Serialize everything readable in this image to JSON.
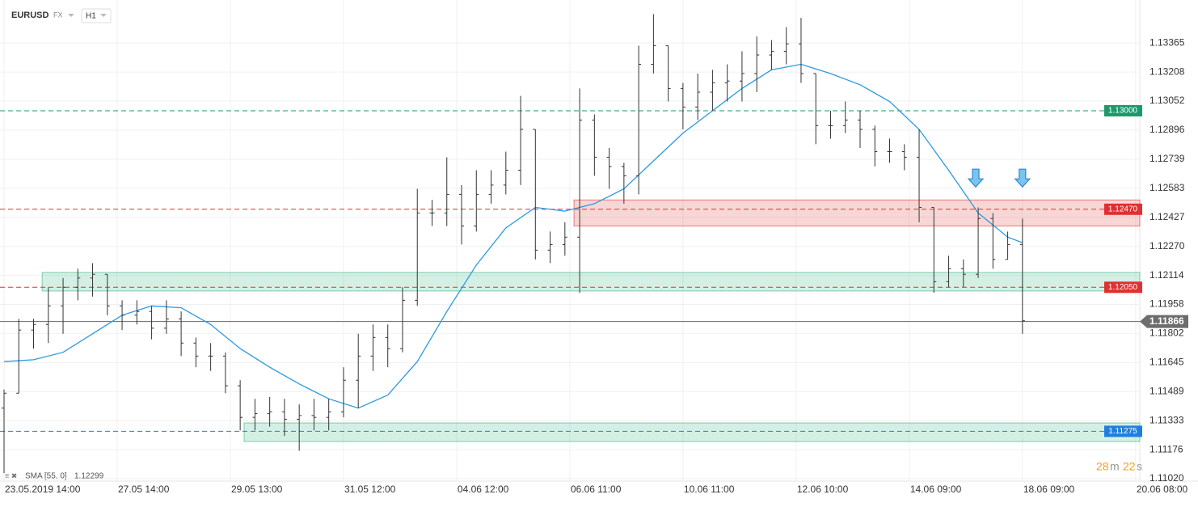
{
  "chart_data": {
    "type": "ohlc",
    "symbol": "EURUSD",
    "market": "FX",
    "interval": "H1",
    "x": [
      0,
      6,
      12,
      18,
      24,
      30,
      36,
      42,
      48,
      54,
      60,
      66,
      72,
      78,
      84,
      90,
      96,
      102,
      108,
      114,
      120,
      126,
      132,
      138,
      144,
      150,
      156,
      162,
      168,
      174,
      180,
      186,
      192,
      198,
      204,
      210,
      216,
      222,
      228,
      234,
      240,
      246,
      252,
      258,
      264,
      270,
      276,
      282,
      288,
      294,
      300,
      306,
      312,
      318,
      324,
      330,
      336,
      342,
      348,
      354,
      360,
      366,
      372,
      378,
      384,
      390,
      396,
      402,
      408,
      414
    ],
    "open": [
      1.114,
      1.1148,
      1.1182,
      1.1185,
      1.1195,
      1.1205,
      1.121,
      1.1212,
      1.1195,
      1.119,
      1.1192,
      1.1183,
      1.1188,
      1.1175,
      1.1168,
      1.1168,
      1.1152,
      1.1135,
      1.1137,
      1.1138,
      1.1134,
      1.1136,
      1.1135,
      1.1138,
      1.1155,
      1.1168,
      1.1178,
      1.1172,
      1.1198,
      1.1245,
      1.1245,
      1.1255,
      1.1238,
      1.1255,
      1.126,
      1.1268,
      1.129,
      1.1225,
      1.1228,
      1.1232,
      1.1295,
      1.1275,
      1.127,
      1.1265,
      1.1325,
      1.1335,
      1.1312,
      1.1302,
      1.131,
      1.1315,
      1.1316,
      1.132,
      1.133,
      1.1332,
      1.1336,
      1.132,
      1.1292,
      1.1292,
      1.1295,
      1.129,
      1.1278,
      1.1278,
      1.1275,
      1.1248,
      1.1208,
      1.1215,
      1.1212,
      1.1242,
      1.122,
      1.1228
    ],
    "high": [
      1.115,
      1.1188,
      1.1188,
      1.1205,
      1.121,
      1.1215,
      1.1218,
      1.1212,
      1.1198,
      1.1198,
      1.1195,
      1.1198,
      1.1192,
      1.1178,
      1.1175,
      1.117,
      1.1155,
      1.1145,
      1.1146,
      1.1145,
      1.1142,
      1.1145,
      1.1145,
      1.1162,
      1.118,
      1.1185,
      1.1185,
      1.1205,
      1.1258,
      1.1252,
      1.1275,
      1.126,
      1.1268,
      1.1268,
      1.1278,
      1.1308,
      1.129,
      1.1235,
      1.124,
      1.1312,
      1.1298,
      1.128,
      1.1272,
      1.1335,
      1.1352,
      1.1335,
      1.1315,
      1.132,
      1.1322,
      1.1325,
      1.1332,
      1.134,
      1.1338,
      1.1345,
      1.135,
      1.132,
      1.13,
      1.1305,
      1.13,
      1.1292,
      1.1285,
      1.1282,
      1.129,
      1.1248,
      1.1222,
      1.122,
      1.1248,
      1.1245,
      1.1235,
      1.1242
    ],
    "low": [
      1.1105,
      1.1148,
      1.1172,
      1.1175,
      1.118,
      1.1198,
      1.12,
      1.119,
      1.1182,
      1.1185,
      1.1177,
      1.118,
      1.1168,
      1.1162,
      1.116,
      1.1148,
      1.1128,
      1.1128,
      1.113,
      1.1125,
      1.1117,
      1.1128,
      1.1128,
      1.1135,
      1.114,
      1.116,
      1.1162,
      1.117,
      1.1195,
      1.1238,
      1.1238,
      1.1228,
      1.1235,
      1.125,
      1.1255,
      1.126,
      1.122,
      1.1218,
      1.1222,
      1.1202,
      1.1265,
      1.1258,
      1.125,
      1.1255,
      1.132,
      1.1305,
      1.129,
      1.1295,
      1.13,
      1.1305,
      1.1305,
      1.131,
      1.1322,
      1.1325,
      1.1315,
      1.1282,
      1.1285,
      1.1288,
      1.128,
      1.127,
      1.1272,
      1.1268,
      1.124,
      1.1202,
      1.1205,
      1.1205,
      1.121,
      1.1215,
      1.122,
      1.118
    ],
    "close": [
      1.1148,
      1.1182,
      1.1185,
      1.1195,
      1.1205,
      1.121,
      1.1212,
      1.1195,
      1.119,
      1.1192,
      1.1183,
      1.1188,
      1.1175,
      1.1168,
      1.1168,
      1.1152,
      1.1135,
      1.1137,
      1.1138,
      1.1134,
      1.1136,
      1.1135,
      1.1138,
      1.1155,
      1.1168,
      1.1178,
      1.1172,
      1.1198,
      1.1245,
      1.1245,
      1.1255,
      1.1238,
      1.1255,
      1.126,
      1.1268,
      1.129,
      1.1225,
      1.1228,
      1.1232,
      1.1295,
      1.1275,
      1.127,
      1.1265,
      1.1325,
      1.1335,
      1.1312,
      1.1302,
      1.131,
      1.1315,
      1.1316,
      1.132,
      1.133,
      1.1332,
      1.1336,
      1.132,
      1.1292,
      1.1292,
      1.1295,
      1.129,
      1.1278,
      1.1278,
      1.1275,
      1.1248,
      1.1208,
      1.1215,
      1.1212,
      1.1242,
      1.122,
      1.1228,
      1.1187
    ],
    "bar_color": "#333333",
    "sma": {
      "name": "SMA [55, 0]",
      "last": 1.12299,
      "color": "#2a9ae0",
      "x": [
        0,
        12,
        24,
        36,
        48,
        60,
        72,
        84,
        96,
        108,
        120,
        132,
        144,
        156,
        168,
        180,
        192,
        204,
        216,
        228,
        240,
        252,
        264,
        276,
        288,
        300,
        312,
        324,
        336,
        348,
        360,
        372,
        384,
        396,
        408,
        414
      ],
      "values": [
        1.1165,
        1.1166,
        1.117,
        1.118,
        1.119,
        1.1195,
        1.1194,
        1.1185,
        1.1172,
        1.1162,
        1.1153,
        1.1145,
        1.114,
        1.1147,
        1.1165,
        1.1192,
        1.1217,
        1.1237,
        1.1248,
        1.1246,
        1.125,
        1.1258,
        1.1273,
        1.1288,
        1.13,
        1.1312,
        1.1322,
        1.1325,
        1.132,
        1.1314,
        1.1305,
        1.129,
        1.1268,
        1.1245,
        1.1232,
        1.1229
      ]
    },
    "levels": [
      {
        "value": 1.13,
        "label": "1.13000",
        "color": "#1a9a6a"
      },
      {
        "value": 1.1247,
        "label": "1.12470",
        "color": "#e03030"
      },
      {
        "value": 1.1205,
        "label": "1.12050",
        "color": "#e03030"
      },
      {
        "value": 1.11275,
        "label": "1.11275",
        "color": "#1f7fe0"
      }
    ],
    "zones": [
      {
        "from": 231.7,
        "low": 1.1238,
        "high": 1.1252,
        "color": "#e03030"
      },
      {
        "from": 15.5,
        "low": 1.1203,
        "high": 1.1213,
        "color": "#2ab27b"
      },
      {
        "from": 97.6,
        "low": 1.1122,
        "high": 1.1132,
        "color": "#2ab27b"
      }
    ],
    "markers": [
      {
        "x": 395,
        "y": 1.1259
      },
      {
        "x": 414,
        "y": 1.1259
      }
    ],
    "current": {
      "value": 1.11866,
      "label": "1.11866"
    },
    "countdown": [
      "28",
      "m",
      "22",
      "s"
    ],
    "xlim": [
      -1.64,
      461.7
    ],
    "ylim": [
      1.11007,
      1.13596
    ],
    "xticks": [
      {
        "value": 0,
        "label": "23.05.2019 14:00"
      },
      {
        "value": 46,
        "label": "27.05 14:00"
      },
      {
        "value": 92,
        "label": "29.05 13:00"
      },
      {
        "value": 138,
        "label": "31.05 12:00"
      },
      {
        "value": 184,
        "label": "04.06 12:00"
      },
      {
        "value": 230,
        "label": "06.06 11:00"
      },
      {
        "value": 276,
        "label": "10.06 11:00"
      },
      {
        "value": 322,
        "label": "12.06 10:00"
      },
      {
        "value": 368,
        "label": "14.06 09:00"
      },
      {
        "value": 414,
        "label": "18.06 09:00"
      },
      {
        "value": 460,
        "label": "20.06 08:00"
      }
    ],
    "yticks": [
      {
        "value": 1.1102,
        "label": "1.11020"
      },
      1.11176,
      1.11333,
      1.11489,
      1.11645,
      1.11802,
      1.11958,
      1.12114,
      {
        "value": 1.1227,
        "label": "1.12270"
      },
      1.12427,
      1.12583,
      1.12739,
      1.12896,
      1.13052,
      1.13208,
      1.13365
    ],
    "grid": true
  }
}
